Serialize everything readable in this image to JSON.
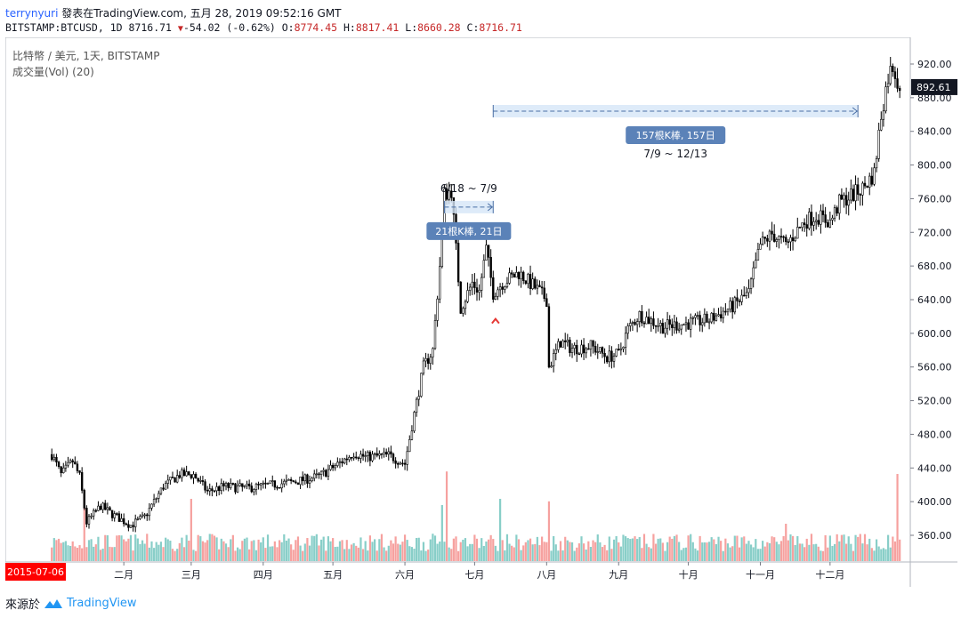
{
  "header": {
    "user": "terrynyuri",
    "published": "發表在TradingView.com, 五月 28, 2019 09:52:16 GMT",
    "symbol": "BITSTAMP:BTCUSD, 1D",
    "last": "8716.71",
    "change": "-54.02 (-0.62%)",
    "o_label": "O:",
    "o": "8774.45",
    "h_label": "H:",
    "h": "8817.41",
    "l_label": "L:",
    "l": "8660.28",
    "c_label": "C:",
    "c": "8716.71"
  },
  "legend": {
    "line1": "比特幣 / 美元, 1天, BITSTAMP",
    "line2": "成交量(Vol) (20)"
  },
  "footer": {
    "prefix": "來源於",
    "brand": "TradingView"
  },
  "colors": {
    "up": "#26a69a",
    "down": "#ef5350",
    "candle": "#000000",
    "annot": "#5b82b8",
    "measure_fill": "#d6e6f7",
    "last_bg": "#131722"
  },
  "chart_data": {
    "type": "candlestick",
    "ylim": [
      300,
      930
    ],
    "y_ticks": [
      360,
      400,
      440,
      480,
      520,
      560,
      600,
      640,
      680,
      720,
      760,
      800,
      840,
      880,
      920
    ],
    "y_tick_labels": [
      "360.00",
      "400.00",
      "440.00",
      "480.00",
      "520.00",
      "560.00",
      "600.00",
      "640.00",
      "680.00",
      "720.00",
      "760.00",
      "800.00",
      "840.00",
      "880.00",
      "920.00"
    ],
    "last_price": 892.61,
    "last_price_label": "892.61",
    "x_range": [
      "2015-07-06",
      "2016-12-31"
    ],
    "month_labels": [
      "二月",
      "三月",
      "四月",
      "五月",
      "六月",
      "七月",
      "八月",
      "九月",
      "十月",
      "十一月",
      "十二月"
    ],
    "month_dates": [
      "2016-02-01",
      "2016-03-01",
      "2016-04-01",
      "2016-05-01",
      "2016-06-01",
      "2016-07-01",
      "2016-08-01",
      "2016-09-01",
      "2016-10-01",
      "2016-11-01",
      "2016-12-01"
    ],
    "start_label": "2015-07-06",
    "anchors": [
      [
        "2016-01-01",
        456
      ],
      [
        "2016-01-05",
        432
      ],
      [
        "2016-01-10",
        448
      ],
      [
        "2016-01-13",
        430
      ],
      [
        "2016-01-16",
        375
      ],
      [
        "2016-01-22",
        395
      ],
      [
        "2016-01-27",
        385
      ],
      [
        "2016-02-04",
        372
      ],
      [
        "2016-02-10",
        382
      ],
      [
        "2016-02-18",
        418
      ],
      [
        "2016-02-25",
        432
      ],
      [
        "2016-03-02",
        432
      ],
      [
        "2016-03-08",
        412
      ],
      [
        "2016-03-15",
        418
      ],
      [
        "2016-03-25",
        416
      ],
      [
        "2016-04-05",
        420
      ],
      [
        "2016-04-15",
        424
      ],
      [
        "2016-04-25",
        430
      ],
      [
        "2016-05-05",
        448
      ],
      [
        "2016-05-10",
        458
      ],
      [
        "2016-05-15",
        453
      ],
      [
        "2016-05-25",
        455
      ],
      [
        "2016-06-01",
        445
      ],
      [
        "2016-06-04",
        490
      ],
      [
        "2016-06-09",
        560
      ],
      [
        "2016-06-13",
        580
      ],
      [
        "2016-06-16",
        680
      ],
      [
        "2016-06-18",
        765
      ],
      [
        "2016-06-21",
        770
      ],
      [
        "2016-06-23",
        700
      ],
      [
        "2016-06-25",
        630
      ],
      [
        "2016-06-30",
        660
      ],
      [
        "2016-07-03",
        650
      ],
      [
        "2016-07-06",
        700
      ],
      [
        "2016-07-09",
        648
      ],
      [
        "2016-07-13",
        660
      ],
      [
        "2016-07-20",
        672
      ],
      [
        "2016-07-28",
        652
      ],
      [
        "2016-08-01",
        640
      ],
      [
        "2016-08-02",
        560
      ],
      [
        "2016-08-07",
        590
      ],
      [
        "2016-08-12",
        582
      ],
      [
        "2016-08-20",
        585
      ],
      [
        "2016-08-27",
        572
      ],
      [
        "2016-09-01",
        575
      ],
      [
        "2016-09-05",
        605
      ],
      [
        "2016-09-10",
        622
      ],
      [
        "2016-09-20",
        608
      ],
      [
        "2016-10-01",
        612
      ],
      [
        "2016-10-10",
        616
      ],
      [
        "2016-10-20",
        632
      ],
      [
        "2016-10-27",
        648
      ],
      [
        "2016-11-01",
        705
      ],
      [
        "2016-11-06",
        718
      ],
      [
        "2016-11-12",
        705
      ],
      [
        "2016-11-20",
        733
      ],
      [
        "2016-11-25",
        740
      ],
      [
        "2016-12-01",
        732
      ],
      [
        "2016-12-05",
        755
      ],
      [
        "2016-12-15",
        772
      ],
      [
        "2016-12-20",
        790
      ],
      [
        "2016-12-23",
        860
      ],
      [
        "2016-12-26",
        905
      ],
      [
        "2016-12-28",
        918
      ],
      [
        "2016-12-31",
        892.61
      ]
    ],
    "volume_scale_max": 1.0,
    "volume_spikes": [
      [
        "2015-07-06",
        1.0
      ],
      [
        "2016-01-15",
        0.55
      ],
      [
        "2016-03-01",
        0.5
      ],
      [
        "2016-06-17",
        0.45
      ],
      [
        "2016-06-19",
        0.72
      ],
      [
        "2016-07-12",
        0.5
      ],
      [
        "2016-08-02",
        0.48
      ],
      [
        "2016-11-12",
        0.3
      ],
      [
        "2016-12-30",
        0.7
      ]
    ],
    "annotations": [
      {
        "label": "21根K棒, 21日",
        "range_label": "6/18 ~ 7/9",
        "start": "2016-06-18",
        "end": "2016-07-09",
        "y": 750,
        "label_pos": "below"
      },
      {
        "label": "157根K棒, 157日",
        "range_label": "7/9 ~ 12/13",
        "start": "2016-07-09",
        "end": "2016-12-13",
        "y": 864,
        "label_pos": "below"
      }
    ],
    "marker": {
      "date": "2016-07-10",
      "price": 615,
      "glyph": "^"
    }
  }
}
